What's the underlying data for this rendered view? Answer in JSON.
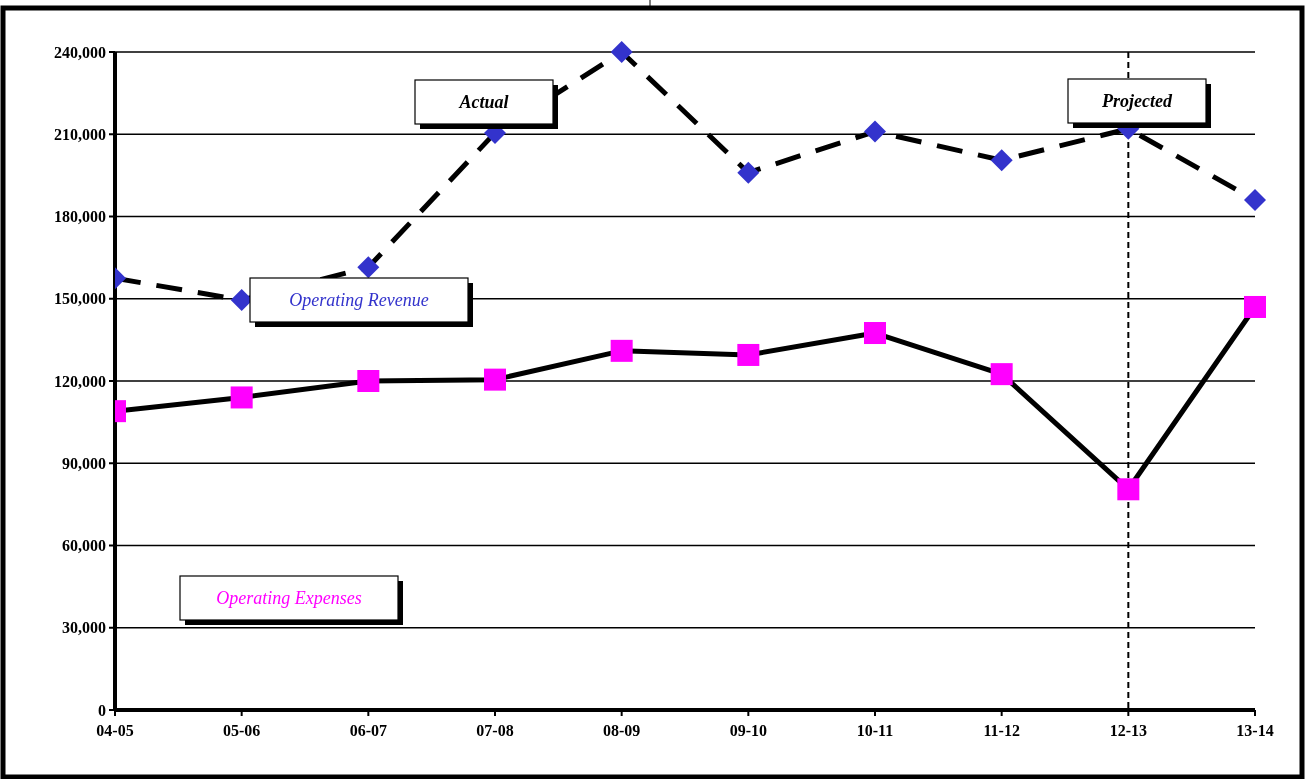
{
  "chart_data": {
    "type": "line",
    "categories": [
      "04-05",
      "05-06",
      "06-07",
      "07-08",
      "08-09",
      "09-10",
      "10-11",
      "11-12",
      "12-13",
      "13-14"
    ],
    "series": [
      {
        "name": "Operating Revenue",
        "color": "#3333cc",
        "marker": "diamond",
        "line_style": "dashed",
        "values": [
          157500,
          149500,
          161500,
          210500,
          240000,
          196000,
          211000,
          200500,
          212000,
          186000
        ]
      },
      {
        "name": "Operating Expenses",
        "color": "#ff00ff",
        "marker": "square",
        "line_style": "solid",
        "values": [
          109000,
          114000,
          120000,
          120500,
          131000,
          129500,
          137500,
          122500,
          80500,
          147000
        ]
      }
    ],
    "ylim": [
      0,
      240000
    ],
    "yticks": [
      {
        "value": 0,
        "label": "0"
      },
      {
        "value": 30000,
        "label": "30,000"
      },
      {
        "value": 60000,
        "label": "60,000"
      },
      {
        "value": 90000,
        "label": "90,000"
      },
      {
        "value": 120000,
        "label": "120,000"
      },
      {
        "value": 150000,
        "label": "150,000"
      },
      {
        "value": 180000,
        "label": "180,000"
      },
      {
        "value": 210000,
        "label": "210,000"
      },
      {
        "value": 240000,
        "label": "240,000"
      }
    ],
    "grid": "y",
    "legend": false,
    "ref_lines": [
      {
        "axis": "x",
        "value": "12-13",
        "label": null,
        "line_style": "dashed",
        "color": "#000000"
      }
    ],
    "annotations": [
      "Actual",
      "Projected"
    ]
  }
}
